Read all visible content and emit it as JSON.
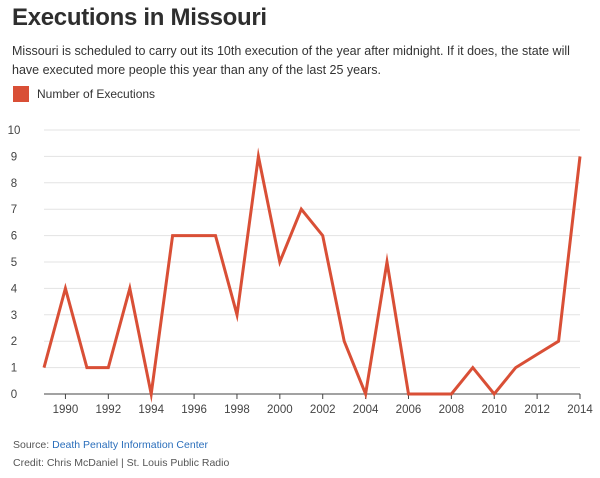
{
  "header": {
    "title": "Executions in Missouri",
    "subtitle": "Missouri is scheduled to carry out its 10th execution of the year after midnight. If it does, the state will have executed more people this year than any of the last 25 years."
  },
  "legend": {
    "label": "Number of Executions",
    "color": "#d94f36"
  },
  "footer": {
    "source_prefix": "Source:",
    "source_link": "Death Penalty Information Center",
    "credit": "Credit: Chris McDaniel | St. Louis Public Radio"
  },
  "chart_data": {
    "type": "line",
    "title": "Executions in Missouri",
    "xlabel": "",
    "ylabel": "",
    "x": [
      1989,
      1990,
      1991,
      1992,
      1993,
      1994,
      1995,
      1996,
      1997,
      1998,
      1999,
      2000,
      2001,
      2002,
      2003,
      2004,
      2005,
      2006,
      2007,
      2008,
      2009,
      2010,
      2011,
      2012,
      2013,
      2014
    ],
    "series": [
      {
        "name": "Number of Executions",
        "values": [
          1,
          4,
          1,
          1,
          4,
          0,
          6,
          6,
          6,
          3,
          9,
          5,
          7,
          6,
          2,
          0,
          5,
          0,
          0,
          0,
          1,
          0,
          1,
          1.5,
          2,
          9
        ]
      }
    ],
    "xlim": [
      1989,
      2014
    ],
    "ylim": [
      0,
      10
    ],
    "x_ticks": [
      "1990",
      "1992",
      "1994",
      "1996",
      "1998",
      "2000",
      "2002",
      "2004",
      "2006",
      "2008",
      "2010",
      "2012",
      "2014"
    ],
    "y_ticks": [
      "0",
      "1",
      "2",
      "3",
      "4",
      "5",
      "6",
      "7",
      "8",
      "9",
      "10"
    ],
    "grid": "horizontal",
    "legend_position": "top-left",
    "line_color": "#d94f36"
  }
}
